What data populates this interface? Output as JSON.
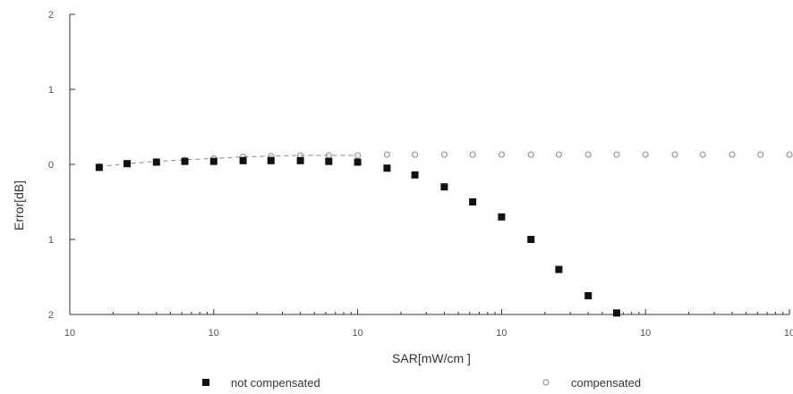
{
  "chart_data": {
    "type": "scatter",
    "title": "",
    "xlabel": "SAR[mW/cm ]",
    "ylabel": "Error[dB]",
    "xscale": "log",
    "xlim": [
      0.01,
      1000
    ],
    "ylim": [
      -2,
      2
    ],
    "x_ticks": [
      {
        "value": 0.01,
        "label": "10"
      },
      {
        "value": 0.1,
        "label": "10"
      },
      {
        "value": 1,
        "label": "10"
      },
      {
        "value": 10,
        "label": "10"
      },
      {
        "value": 100,
        "label": "10"
      },
      {
        "value": 1000,
        "label": "10"
      }
    ],
    "y_ticks": [
      {
        "value": 2,
        "label": "2"
      },
      {
        "value": 1,
        "label": "1"
      },
      {
        "value": 0,
        "label": "0"
      },
      {
        "value": -1,
        "label": "1"
      },
      {
        "value": -2,
        "label": "2"
      }
    ],
    "grid": false,
    "legend_position": "bottom",
    "series": [
      {
        "name": "not compensated",
        "marker": "filled-square",
        "color": "#111111",
        "x": [
          0.016,
          0.025,
          0.04,
          0.063,
          0.1,
          0.16,
          0.25,
          0.4,
          0.63,
          1,
          1.6,
          2.5,
          4,
          6.3,
          10,
          16,
          25,
          40,
          63
        ],
        "y": [
          -0.04,
          0.01,
          0.03,
          0.04,
          0.04,
          0.05,
          0.05,
          0.05,
          0.04,
          0.03,
          -0.05,
          -0.14,
          -0.3,
          -0.5,
          -0.7,
          -1.0,
          -1.4,
          -1.75,
          -1.98
        ]
      },
      {
        "name": "compensated",
        "marker": "open-circle",
        "color": "#999999",
        "x": [
          0.016,
          0.025,
          0.04,
          0.063,
          0.1,
          0.16,
          0.25,
          0.4,
          0.63,
          1,
          1.6,
          2.5,
          4,
          6.3,
          10,
          16,
          25,
          40,
          63,
          100,
          160,
          250,
          400,
          630,
          1000
        ],
        "y": [
          -0.03,
          0.01,
          0.04,
          0.06,
          0.08,
          0.1,
          0.11,
          0.12,
          0.12,
          0.12,
          0.13,
          0.13,
          0.13,
          0.13,
          0.13,
          0.13,
          0.13,
          0.13,
          0.13,
          0.13,
          0.13,
          0.13,
          0.13,
          0.13,
          0.13
        ]
      }
    ]
  }
}
